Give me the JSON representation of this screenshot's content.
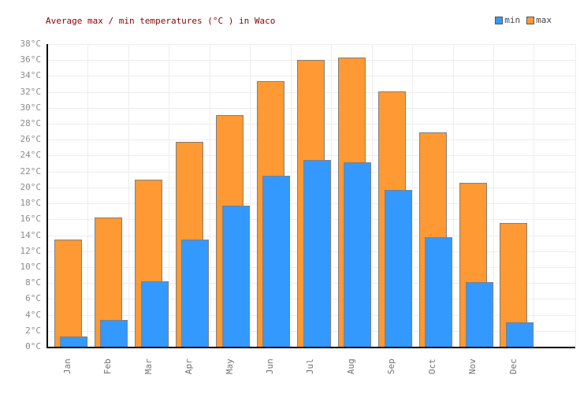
{
  "title": "Average max / min temperatures (°C ) in Waco",
  "chart_data": {
    "type": "bar",
    "title": "Average max / min temperatures (°C ) in Waco",
    "categories": [
      "Jan",
      "Feb",
      "Mar",
      "Apr",
      "May",
      "Jun",
      "Jul",
      "Aug",
      "Sep",
      "Oct",
      "Nov",
      "Dec"
    ],
    "series": [
      {
        "name": "min",
        "color": "#3399FF",
        "values": [
          1.3,
          3.4,
          8.2,
          13.5,
          17.7,
          21.5,
          23.5,
          23.2,
          19.7,
          13.8,
          8.1,
          3.1
        ]
      },
      {
        "name": "max",
        "color": "#FF9933",
        "values": [
          13.5,
          16.2,
          21.0,
          25.7,
          29.1,
          33.3,
          36.0,
          36.3,
          32.1,
          26.9,
          20.6,
          15.5
        ]
      }
    ],
    "unit": "°C",
    "ylim": [
      0,
      38
    ],
    "ytick_step": 2,
    "yticks": [
      "0°C",
      "2°C",
      "4°C",
      "6°C",
      "8°C",
      "10°C",
      "12°C",
      "14°C",
      "16°C",
      "18°C",
      "20°C",
      "22°C",
      "24°C",
      "26°C",
      "28°C",
      "30°C",
      "32°C",
      "34°C",
      "36°C",
      "38°C"
    ],
    "grid": true,
    "legend_position": "top-right",
    "bar_style": "overlapping, max behind-left, min front-right, gray 1px borders"
  },
  "colors": {
    "min_bar": "#3399FF",
    "max_bar": "#FF9933",
    "bar_border": "#808080",
    "title_text": "#8b0000",
    "grid": "#ededed",
    "axis": "#000000",
    "ytick_text": "#8c8c8c",
    "xtick_text": "#737373",
    "legend_text": "#444444"
  }
}
